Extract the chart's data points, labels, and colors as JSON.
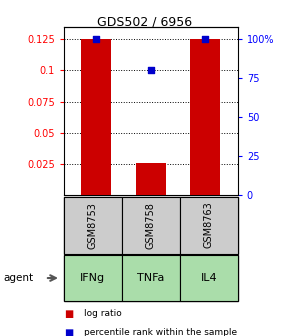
{
  "title": "GDS502 / 6956",
  "samples": [
    "GSM8753",
    "GSM8758",
    "GSM8763"
  ],
  "agents": [
    "IFNg",
    "TNFa",
    "IL4"
  ],
  "log_ratios": [
    0.125,
    0.026,
    0.125
  ],
  "percentile_ranks": [
    100,
    80,
    100
  ],
  "bar_color": "#cc0000",
  "dot_color": "#0000cc",
  "left_yticks": [
    0.025,
    0.05,
    0.075,
    0.1,
    0.125
  ],
  "left_ylim": [
    0.0,
    0.135
  ],
  "right_yticks": [
    0,
    25,
    50,
    75,
    100
  ],
  "right_ylim": [
    0,
    108
  ],
  "sample_box_color": "#cccccc",
  "agent_box_color": "#aaddaa",
  "legend_red_label": "log ratio",
  "legend_blue_label": "percentile rank within the sample"
}
